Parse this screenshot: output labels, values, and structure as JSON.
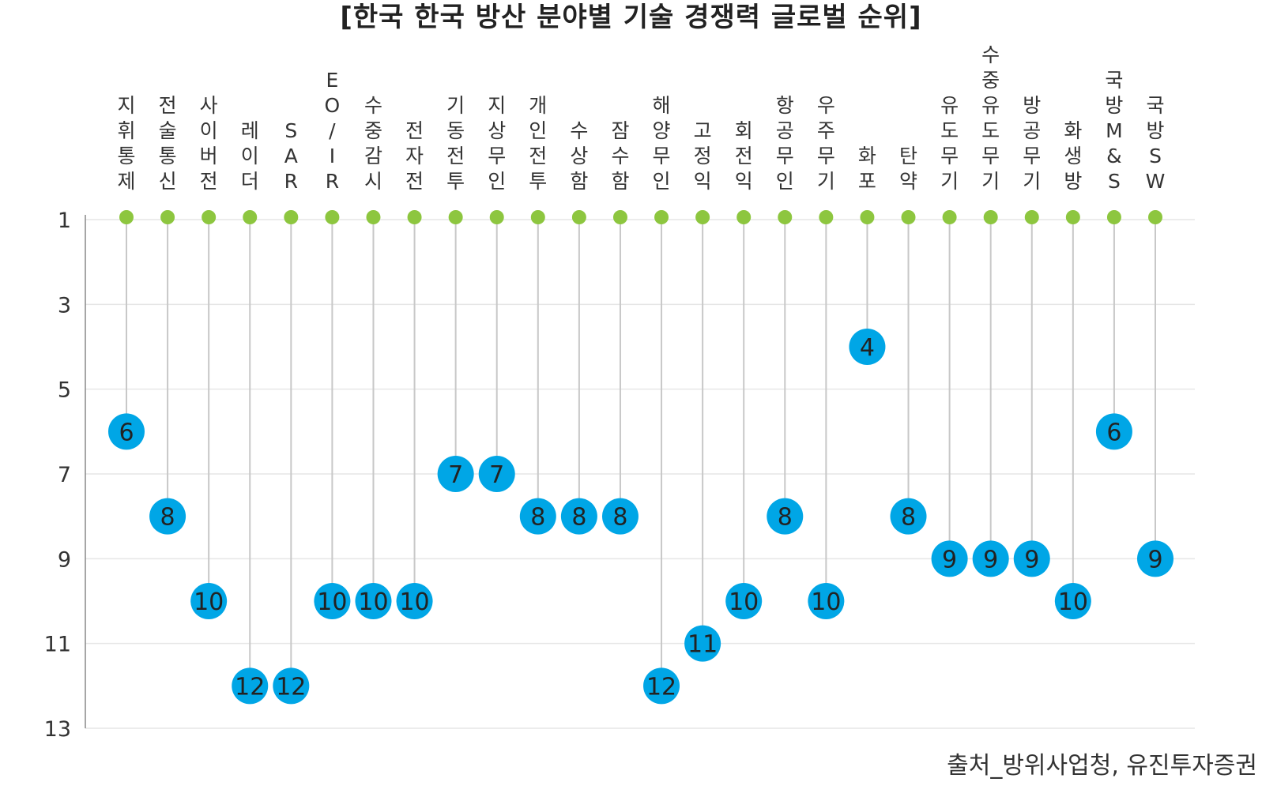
{
  "title": "[한국 한국 방산 분야별 기술 경쟁력 글로벌 순위]",
  "source": "출처_방위사업청, 유진투자증권",
  "colors": {
    "bubble": "#00a6e6",
    "top_dot": "#8dc63f",
    "stem": "#c8c8c8",
    "grid": "#e6e6e6",
    "axis": "#888888"
  },
  "chart_data": {
    "type": "lollipop",
    "y_axis": {
      "ticks": [
        1,
        3,
        5,
        7,
        9,
        11,
        13
      ],
      "range": [
        1,
        13
      ],
      "reversed": true
    },
    "grid": true,
    "categories": [
      "지휘통제",
      "전술통신",
      "사이버전",
      "레이더",
      "SAR",
      "EO/IR",
      "수중감시",
      "전자전",
      "기동전투",
      "지상무인",
      "개인전투",
      "수상함",
      "잠수함",
      "해양무인",
      "고정익",
      "회전익",
      "항공무인",
      "우주무기",
      "화포",
      "탄약",
      "유도무기",
      "수중유도무기",
      "방공무기",
      "화생방",
      "국방M&S",
      "국방SW"
    ],
    "values": [
      6,
      8,
      10,
      12,
      12,
      10,
      10,
      10,
      7,
      7,
      8,
      8,
      8,
      12,
      11,
      10,
      8,
      10,
      4,
      8,
      9,
      9,
      9,
      10,
      6,
      9
    ]
  }
}
